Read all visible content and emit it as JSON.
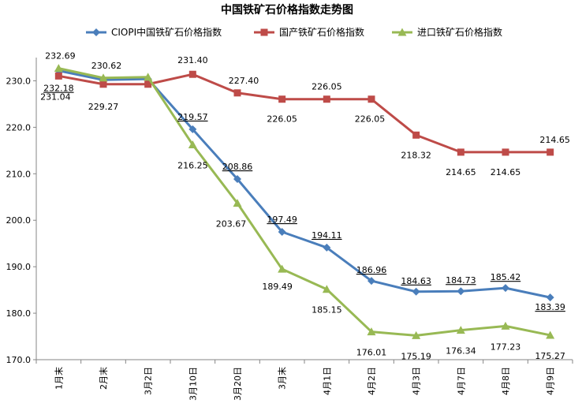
{
  "chart_data": {
    "type": "line",
    "title": "中国铁矿石价格指数走势图",
    "categories": [
      "1月末",
      "2月末",
      "3月2日",
      "3月10日",
      "3月20日",
      "3月末",
      "4月1日",
      "4月2日",
      "4月3日",
      "4月7日",
      "4月8日",
      "4月9日"
    ],
    "ylim": [
      170,
      235
    ],
    "yticks": [
      "170.0",
      "180.0",
      "190.0",
      "200.0",
      "210.0",
      "220.0",
      "230.0"
    ],
    "legend_position": "top",
    "series": [
      {
        "name": "CIOPI中国铁矿石价格指数",
        "color": "#4a7ebb",
        "marker": "diamond",
        "values": [
          232.18,
          230.2,
          230.4,
          219.57,
          208.86,
          197.49,
          194.11,
          186.96,
          184.63,
          184.73,
          185.42,
          183.39
        ],
        "labels": [
          "232.18",
          "",
          "",
          "219.57",
          "208.86",
          "197.49",
          "194.11",
          "186.96",
          "184.63",
          "184.73",
          "185.42",
          "183.39"
        ]
      },
      {
        "name": "国产铁矿石价格指数",
        "color": "#be4b48",
        "marker": "square",
        "values": [
          231.04,
          229.27,
          229.27,
          231.4,
          227.4,
          226.05,
          226.05,
          226.05,
          218.32,
          214.65,
          214.65,
          214.65
        ],
        "labels": [
          "231.04",
          "229.27",
          "",
          "231.40",
          "227.40",
          "226.05",
          "226.05",
          "226.05",
          "218.32",
          "214.65",
          "214.65",
          "214.65"
        ]
      },
      {
        "name": "进口铁矿石价格指数",
        "color": "#98b954",
        "marker": "triangle",
        "values": [
          232.69,
          230.62,
          230.8,
          216.25,
          203.67,
          189.49,
          185.15,
          176.01,
          175.19,
          176.34,
          177.23,
          175.27
        ],
        "labels": [
          "232.69",
          "230.62",
          "",
          "216.25",
          "203.67",
          "189.49",
          "185.15",
          "176.01",
          "175.19",
          "176.34",
          "177.23",
          "175.27"
        ]
      }
    ]
  }
}
